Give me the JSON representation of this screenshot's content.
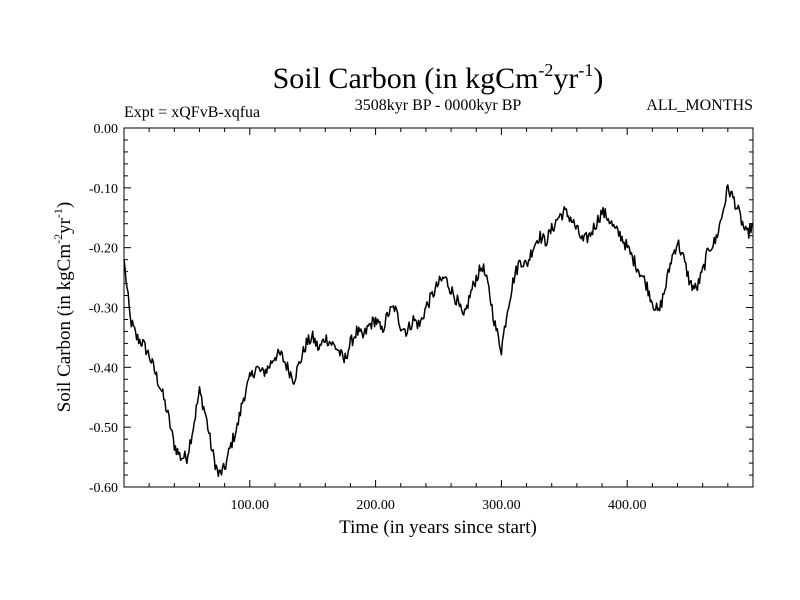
{
  "chart_data": {
    "type": "line",
    "title": "Soil Carbon (in kgCm",
    "title_sup1": "-2",
    "title_mid": "yr",
    "title_sup2": "-1",
    "title_end": ")",
    "subtitle_left": "Expt = xQFvB-xqfua",
    "subtitle_center": "3508kyr BP - 0000kyr BP",
    "subtitle_right": "ALL_MONTHS",
    "xlabel": "Time (in years since start)",
    "ylabel": "Soil Carbon (in kgCm",
    "ylabel_sup1": "-2",
    "ylabel_mid": "yr",
    "ylabel_sup2": "-1",
    "ylabel_end": ")",
    "xlim": [
      0,
      500
    ],
    "ylim": [
      -0.6,
      0.0
    ],
    "xticks": [
      100,
      200,
      300,
      400
    ],
    "xtick_labels": [
      "100.00",
      "200.00",
      "300.00",
      "400.00"
    ],
    "yticks": [
      0.0,
      -0.1,
      -0.2,
      -0.3,
      -0.4,
      -0.5,
      -0.6
    ],
    "ytick_labels": [
      "0.00",
      "-0.10",
      "-0.20",
      "-0.30",
      "-0.40",
      "-0.50",
      "-0.60"
    ],
    "series": [
      {
        "name": "soil_carbon",
        "x": [
          0,
          5,
          10,
          15,
          20,
          25,
          30,
          35,
          40,
          45,
          50,
          55,
          60,
          65,
          70,
          75,
          80,
          85,
          90,
          95,
          100,
          105,
          110,
          115,
          120,
          125,
          130,
          135,
          140,
          145,
          150,
          155,
          160,
          165,
          170,
          175,
          180,
          185,
          190,
          195,
          200,
          205,
          210,
          215,
          220,
          225,
          230,
          235,
          240,
          245,
          250,
          255,
          260,
          265,
          270,
          275,
          280,
          285,
          290,
          295,
          300,
          305,
          310,
          315,
          320,
          325,
          330,
          335,
          340,
          345,
          350,
          355,
          360,
          365,
          370,
          375,
          380,
          385,
          390,
          395,
          400,
          405,
          410,
          415,
          420,
          425,
          430,
          435,
          440,
          445,
          450,
          455,
          460,
          465,
          470,
          475,
          480,
          485,
          490,
          495,
          500
        ],
        "values": [
          -0.22,
          -0.32,
          -0.35,
          -0.36,
          -0.38,
          -0.41,
          -0.44,
          -0.48,
          -0.53,
          -0.55,
          -0.55,
          -0.5,
          -0.44,
          -0.48,
          -0.54,
          -0.58,
          -0.57,
          -0.53,
          -0.5,
          -0.45,
          -0.42,
          -0.4,
          -0.41,
          -0.4,
          -0.38,
          -0.38,
          -0.4,
          -0.42,
          -0.39,
          -0.36,
          -0.35,
          -0.37,
          -0.35,
          -0.36,
          -0.37,
          -0.39,
          -0.36,
          -0.34,
          -0.35,
          -0.33,
          -0.32,
          -0.34,
          -0.31,
          -0.3,
          -0.33,
          -0.34,
          -0.32,
          -0.33,
          -0.3,
          -0.28,
          -0.26,
          -0.25,
          -0.27,
          -0.29,
          -0.32,
          -0.28,
          -0.25,
          -0.23,
          -0.27,
          -0.33,
          -0.37,
          -0.3,
          -0.25,
          -0.22,
          -0.23,
          -0.2,
          -0.18,
          -0.19,
          -0.17,
          -0.15,
          -0.14,
          -0.15,
          -0.17,
          -0.19,
          -0.18,
          -0.16,
          -0.14,
          -0.15,
          -0.17,
          -0.18,
          -0.2,
          -0.22,
          -0.24,
          -0.26,
          -0.29,
          -0.31,
          -0.27,
          -0.22,
          -0.19,
          -0.22,
          -0.26,
          -0.27,
          -0.24,
          -0.2,
          -0.19,
          -0.15,
          -0.1,
          -0.12,
          -0.15,
          -0.18,
          -0.16
        ]
      }
    ]
  }
}
